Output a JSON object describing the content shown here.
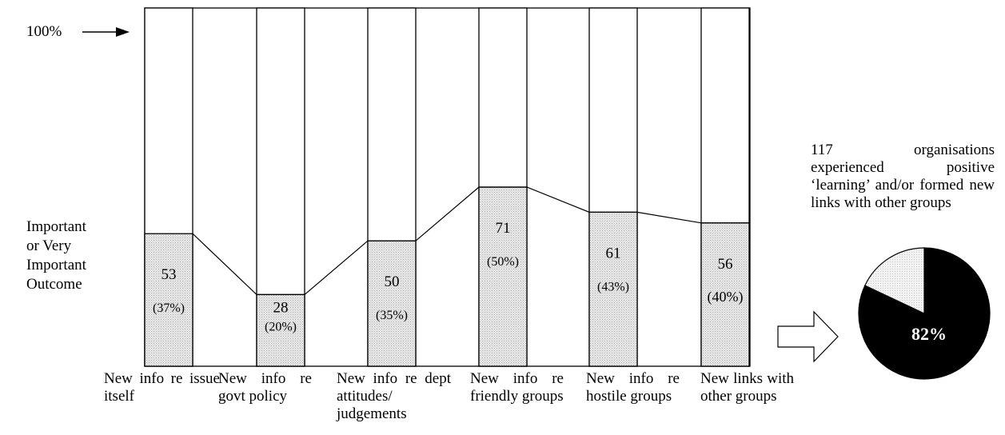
{
  "hundred_marker": "100%",
  "y_axis_label": [
    "Important",
    "or Very",
    "Important",
    "Outcome"
  ],
  "chart_data": {
    "type": "bar",
    "categories": [
      "New info re issue itself",
      "New info re govt policy",
      "New info re dept attitudes/ judgements",
      "New info re friendly groups",
      "New info re hostile groups",
      "New links with other groups"
    ],
    "values": [
      53,
      28,
      50,
      71,
      61,
      56
    ],
    "percent_labels": [
      "(37%)",
      "(20%)",
      "(35%)",
      "(50%)",
      "(43%)",
      "(40%)"
    ],
    "percent_values": [
      37,
      20,
      35,
      50,
      43,
      40
    ],
    "ylim": [
      0,
      100
    ],
    "xlabel": "",
    "ylabel": "Important or Very Important Outcome"
  },
  "side_note": "117 organisations experienced positive ‘learning’ and/or formed new links with other groups",
  "pie": {
    "type": "pie",
    "values": [
      82,
      18
    ],
    "label": "82%",
    "colors": [
      "#000000",
      "#ededed"
    ]
  }
}
